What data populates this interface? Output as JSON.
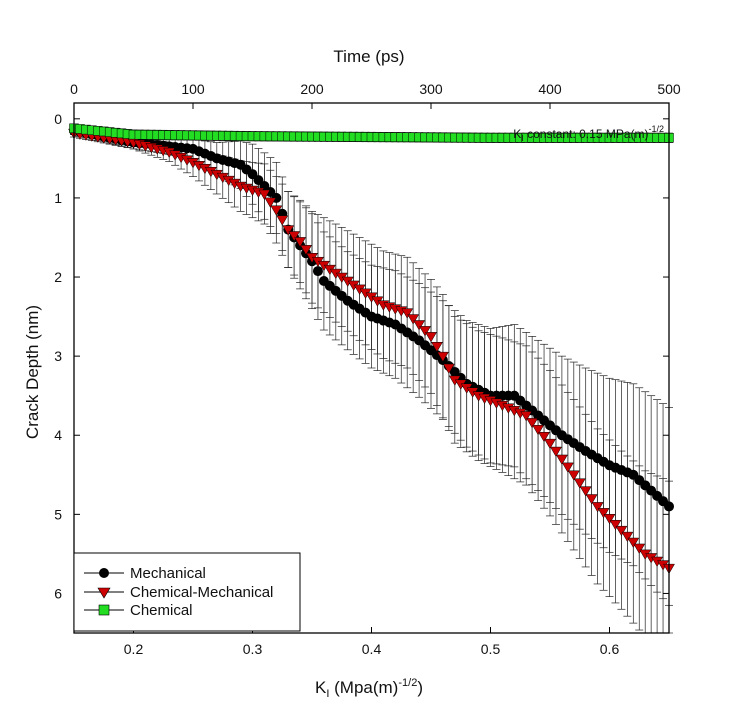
{
  "chart_data": {
    "type": "scatter",
    "top_axis": {
      "label": "Time (ps)",
      "range": [
        0,
        500
      ],
      "ticks": [
        0,
        100,
        200,
        300,
        400,
        500
      ],
      "tick_labels": [
        "0",
        "100",
        "200",
        "300",
        "400",
        "500"
      ]
    },
    "x_axis": {
      "label_main": "K",
      "label_sub": "I",
      "label_rest": " (Mpa(m)",
      "label_sup": "-1/2",
      "label_close": ")",
      "range": [
        0.15,
        0.65
      ],
      "ticks": [
        0.2,
        0.3,
        0.4,
        0.5,
        0.6
      ],
      "tick_labels": [
        "0.2",
        "0.3",
        "0.4",
        "0.5",
        "0.6"
      ]
    },
    "y_axis": {
      "label": "Crack Depth (nm)",
      "range": [
        -0.2,
        6.5
      ],
      "inverted": true,
      "ticks": [
        0,
        1,
        2,
        3,
        4,
        5,
        6
      ],
      "tick_labels": [
        "0",
        "1",
        "2",
        "3",
        "4",
        "5",
        "6"
      ]
    },
    "annotation": {
      "main": "K",
      "sub": "I",
      "rest": " constant: 0.15 MPa(m)",
      "sup": "-1/2"
    },
    "legend_placement": "bottom-left",
    "series": [
      {
        "name": "Mechanical",
        "marker": "circle",
        "color": "#000000",
        "x": [
          0.15,
          0.2,
          0.25,
          0.27,
          0.29,
          0.3,
          0.31,
          0.32,
          0.33,
          0.34,
          0.35,
          0.36,
          0.38,
          0.4,
          0.42,
          0.44,
          0.46,
          0.48,
          0.5,
          0.52,
          0.54,
          0.56,
          0.58,
          0.6,
          0.62,
          0.635,
          0.65
        ],
        "y": [
          0.15,
          0.3,
          0.38,
          0.5,
          0.58,
          0.7,
          0.85,
          1.0,
          1.4,
          1.6,
          1.8,
          2.05,
          2.3,
          2.5,
          2.6,
          2.8,
          3.05,
          3.35,
          3.5,
          3.5,
          3.75,
          4.0,
          4.2,
          4.38,
          4.5,
          4.7,
          4.9
        ],
        "err": [
          0.05,
          0.08,
          0.12,
          0.2,
          0.3,
          0.38,
          0.42,
          0.45,
          0.48,
          0.55,
          0.6,
          0.62,
          0.62,
          0.65,
          0.68,
          0.72,
          0.75,
          0.8,
          0.85,
          0.9,
          0.95,
          1.0,
          1.05,
          1.1,
          1.15,
          1.2,
          1.25
        ]
      },
      {
        "name": "Chemical-Mechanical",
        "marker": "triangle-down",
        "color": "#cc0000",
        "x": [
          0.15,
          0.2,
          0.23,
          0.25,
          0.27,
          0.29,
          0.31,
          0.32,
          0.33,
          0.34,
          0.35,
          0.37,
          0.39,
          0.41,
          0.43,
          0.45,
          0.46,
          0.47,
          0.49,
          0.51,
          0.53,
          0.55,
          0.57,
          0.59,
          0.61,
          0.63,
          0.65
        ],
        "y": [
          0.18,
          0.3,
          0.42,
          0.55,
          0.7,
          0.85,
          0.95,
          1.15,
          1.4,
          1.55,
          1.75,
          1.95,
          2.15,
          2.35,
          2.45,
          2.75,
          3.0,
          3.3,
          3.5,
          3.62,
          3.75,
          4.1,
          4.5,
          4.9,
          5.2,
          5.5,
          5.68
        ],
        "err": [
          0.05,
          0.08,
          0.12,
          0.18,
          0.25,
          0.32,
          0.38,
          0.42,
          0.48,
          0.52,
          0.58,
          0.62,
          0.65,
          0.68,
          0.7,
          0.72,
          0.78,
          0.8,
          0.82,
          0.85,
          0.88,
          0.92,
          0.95,
          0.98,
          1.0,
          1.05,
          1.1
        ]
      },
      {
        "name": "Chemical",
        "marker": "square",
        "color": "#22dd22",
        "x": [
          0.15,
          0.2,
          0.3,
          0.4,
          0.5,
          0.6,
          0.65
        ],
        "y": [
          0.12,
          0.2,
          0.22,
          0.23,
          0.24,
          0.24,
          0.24
        ],
        "err": [
          0.05,
          0.06,
          0.06,
          0.06,
          0.06,
          0.06,
          0.06
        ]
      }
    ]
  }
}
